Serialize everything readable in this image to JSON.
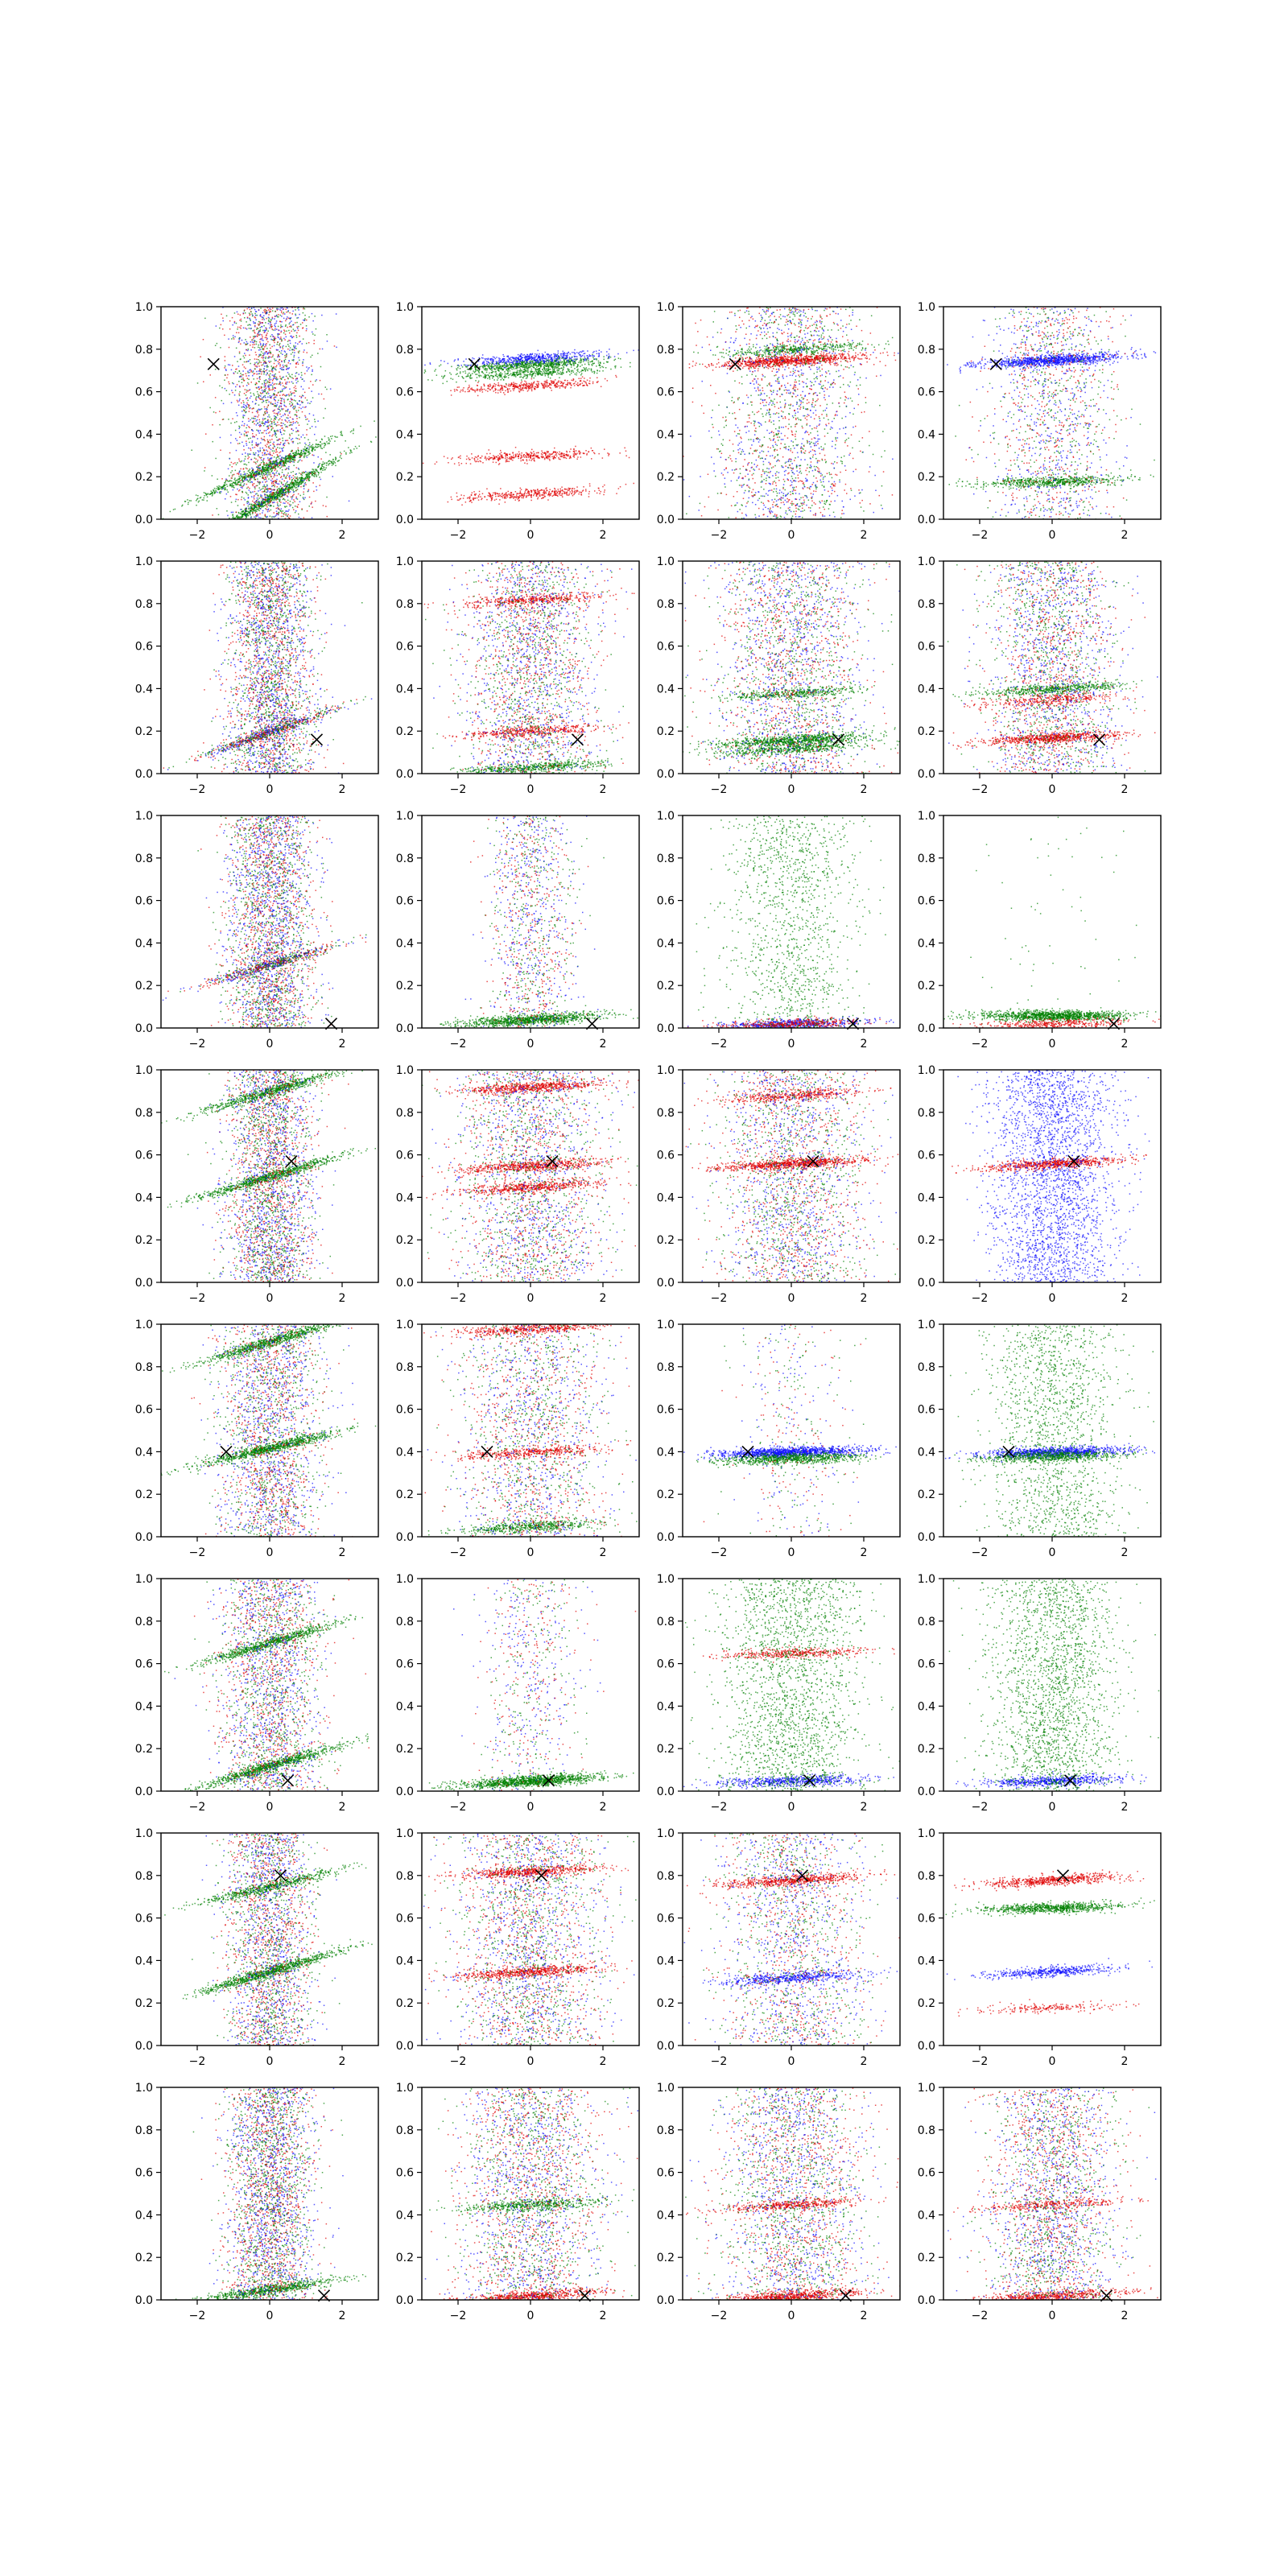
{
  "figure": {
    "rows": 8,
    "cols": 4,
    "colors": {
      "red": "#e00000",
      "green": "#008000",
      "blue": "#1010ff",
      "marker": "#000000"
    }
  },
  "chart_data": {
    "type": "scatter",
    "title": "",
    "xlabel": "",
    "ylabel": "",
    "grid": false,
    "legend": "none",
    "xlim": [
      -3,
      3
    ],
    "ylim": [
      0,
      1
    ],
    "x_ticks": [
      -2,
      0,
      2
    ],
    "y_ticks": [
      0.0,
      0.2,
      0.4,
      0.6,
      0.8,
      1.0
    ],
    "x_tick_labels": [
      "−2",
      "0",
      "2"
    ],
    "y_tick_labels": [
      "0.0",
      "0.2",
      "0.4",
      "0.6",
      "0.8",
      "1.0"
    ],
    "marker_symbol": "x",
    "rows": [
      {
        "marker": [
          -1.55,
          0.73
        ],
        "bands": [
          [
            {
              "y": 0.1,
              "slope": 0.2,
              "color": "green",
              "n": 900
            },
            {
              "y": 0.25,
              "slope": 0.15,
              "color": "green",
              "n": 700
            },
            {
              "y": 0.5,
              "slope": 0,
              "color": "mixed",
              "n": 2500,
              "spread": 0.6
            }
          ],
          [
            {
              "y": 0.73,
              "slope": 0.02,
              "color": "green",
              "n": 700
            },
            {
              "y": 0.69,
              "slope": 0.02,
              "color": "green",
              "n": 400
            },
            {
              "y": 0.76,
              "slope": 0.02,
              "color": "blue",
              "n": 500
            },
            {
              "y": 0.63,
              "slope": 0.02,
              "color": "red",
              "n": 400
            },
            {
              "y": 0.3,
              "slope": 0.02,
              "color": "red",
              "n": 400
            },
            {
              "y": 0.12,
              "slope": 0.02,
              "color": "red",
              "n": 400
            }
          ],
          [
            {
              "y": 0.75,
              "slope": 0.02,
              "color": "red",
              "n": 900
            },
            {
              "y": 0.8,
              "slope": 0.02,
              "color": "green",
              "n": 400
            },
            {
              "y": 0.5,
              "slope": 0,
              "color": "mixed",
              "n": 2000,
              "spread": 1
            }
          ],
          [
            {
              "y": 0.75,
              "slope": 0.02,
              "color": "blue",
              "n": 1000
            },
            {
              "y": 0.18,
              "slope": 0.01,
              "color": "green",
              "n": 600
            },
            {
              "y": 0.5,
              "slope": 0,
              "color": "mixed",
              "n": 1500,
              "spread": 0.9
            }
          ]
        ]
      },
      {
        "marker": [
          1.3,
          0.16
        ],
        "bands": [
          [
            {
              "y": 0.2,
              "slope": 0.12,
              "color": "mixed",
              "n": 700
            },
            {
              "y": 0.5,
              "slope": 0,
              "color": "mixed",
              "n": 3000,
              "spread": 0.6
            }
          ],
          [
            {
              "y": 0.82,
              "slope": 0.02,
              "color": "red",
              "n": 400
            },
            {
              "y": 0.2,
              "slope": 0.02,
              "color": "red",
              "n": 400
            },
            {
              "y": 0.03,
              "slope": 0.02,
              "color": "green",
              "n": 500
            },
            {
              "y": 0.5,
              "slope": 0,
              "color": "mixed",
              "n": 2500,
              "spread": 0.9
            }
          ],
          [
            {
              "y": 0.16,
              "slope": 0.02,
              "color": "green",
              "n": 800
            },
            {
              "y": 0.12,
              "slope": 0.02,
              "color": "green",
              "n": 500
            },
            {
              "y": 0.38,
              "slope": 0.02,
              "color": "green",
              "n": 400
            },
            {
              "y": 0.5,
              "slope": 0,
              "color": "mixed",
              "n": 2500,
              "spread": 1
            }
          ],
          [
            {
              "y": 0.17,
              "slope": 0.02,
              "color": "red",
              "n": 700
            },
            {
              "y": 0.35,
              "slope": 0.02,
              "color": "red",
              "n": 300
            },
            {
              "y": 0.4,
              "slope": 0.02,
              "color": "green",
              "n": 500
            },
            {
              "y": 0.5,
              "slope": 0,
              "color": "mixed",
              "n": 2500,
              "spread": 0.9
            }
          ]
        ]
      },
      {
        "marker": [
          1.7,
          0.02
        ],
        "bands": [
          [
            {
              "y": 0.3,
              "slope": 0.1,
              "color": "mixed",
              "n": 600
            },
            {
              "y": 0.5,
              "slope": 0,
              "color": "mixed",
              "n": 3000,
              "spread": 0.6
            }
          ],
          [
            {
              "y": 0.04,
              "slope": 0.02,
              "color": "green",
              "n": 1000
            },
            {
              "y": 0.5,
              "slope": 0,
              "color": "mixed",
              "n": 1200,
              "spread": 0.6
            }
          ],
          [
            {
              "y": 0.02,
              "slope": 0.01,
              "color": "blue",
              "n": 600
            },
            {
              "y": 0.02,
              "slope": 0.01,
              "color": "red",
              "n": 400
            },
            {
              "y": 0.5,
              "slope": 0,
              "color": "green",
              "n": 1200,
              "spread": 0.9
            }
          ],
          [
            {
              "y": 0.06,
              "slope": 0,
              "color": "green",
              "n": 1200
            },
            {
              "y": 0.02,
              "slope": 0.01,
              "color": "red",
              "n": 400
            },
            {
              "y": 0.5,
              "slope": 0,
              "color": "green",
              "n": 60,
              "spread": 1
            }
          ]
        ]
      },
      {
        "marker": [
          0.6,
          0.57
        ],
        "bands": [
          [
            {
              "y": 0.5,
              "slope": 0.1,
              "color": "green",
              "n": 800
            },
            {
              "y": 0.9,
              "slope": 0.1,
              "color": "green",
              "n": 700
            },
            {
              "y": 0.5,
              "slope": 0,
              "color": "mixed",
              "n": 3000,
              "spread": 0.6
            }
          ],
          [
            {
              "y": 0.92,
              "slope": 0.02,
              "color": "red",
              "n": 600
            },
            {
              "y": 0.55,
              "slope": 0.02,
              "color": "red",
              "n": 600
            },
            {
              "y": 0.45,
              "slope": 0.02,
              "color": "red",
              "n": 500
            },
            {
              "y": 0.5,
              "slope": 0,
              "color": "mixed",
              "n": 2500,
              "spread": 1
            }
          ],
          [
            {
              "y": 0.56,
              "slope": 0.02,
              "color": "red",
              "n": 800
            },
            {
              "y": 0.88,
              "slope": 0.02,
              "color": "red",
              "n": 400
            },
            {
              "y": 0.5,
              "slope": 0,
              "color": "mixed",
              "n": 2500,
              "spread": 1
            }
          ],
          [
            {
              "y": 0.56,
              "slope": 0.02,
              "color": "red",
              "n": 700
            },
            {
              "y": 0.5,
              "slope": 0,
              "color": "blue",
              "n": 2500,
              "spread": 0.9
            }
          ]
        ]
      },
      {
        "marker": [
          -1.2,
          0.4
        ],
        "bands": [
          [
            {
              "y": 0.42,
              "slope": 0.08,
              "color": "green",
              "n": 900
            },
            {
              "y": 0.92,
              "slope": 0.1,
              "color": "green",
              "n": 800
            },
            {
              "y": 0.5,
              "slope": 0,
              "color": "mixed",
              "n": 2500,
              "spread": 0.7
            }
          ],
          [
            {
              "y": 0.98,
              "slope": 0.02,
              "color": "red",
              "n": 500
            },
            {
              "y": 0.4,
              "slope": 0.02,
              "color": "red",
              "n": 400
            },
            {
              "y": 0.05,
              "slope": 0.02,
              "color": "green",
              "n": 500
            },
            {
              "y": 0.5,
              "slope": 0,
              "color": "mixed",
              "n": 2000,
              "spread": 1
            }
          ],
          [
            {
              "y": 0.4,
              "slope": 0.01,
              "color": "blue",
              "n": 1200
            },
            {
              "y": 0.37,
              "slope": 0.01,
              "color": "green",
              "n": 800
            },
            {
              "y": 0.5,
              "slope": 0,
              "color": "mixed",
              "n": 400,
              "spread": 0.8
            }
          ],
          [
            {
              "y": 0.4,
              "slope": 0.01,
              "color": "blue",
              "n": 1000
            },
            {
              "y": 0.38,
              "slope": 0.01,
              "color": "green",
              "n": 600
            },
            {
              "y": 0.5,
              "slope": 0,
              "color": "green",
              "n": 1500,
              "spread": 0.9
            }
          ]
        ]
      },
      {
        "marker": [
          0.5,
          0.05
        ],
        "bands": [
          [
            {
              "y": 0.12,
              "slope": 0.1,
              "color": "green",
              "n": 900
            },
            {
              "y": 0.7,
              "slope": 0.1,
              "color": "green",
              "n": 700
            },
            {
              "y": 0.5,
              "slope": 0,
              "color": "mixed",
              "n": 2500,
              "spread": 0.7
            }
          ],
          [
            {
              "y": 0.05,
              "slope": 0.02,
              "color": "green",
              "n": 1200
            },
            {
              "y": 0.5,
              "slope": 0,
              "color": "mixed",
              "n": 700,
              "spread": 0.7
            }
          ],
          [
            {
              "y": 0.05,
              "slope": 0.01,
              "color": "blue",
              "n": 600
            },
            {
              "y": 0.65,
              "slope": 0.01,
              "color": "red",
              "n": 400
            },
            {
              "y": 0.5,
              "slope": 0,
              "color": "green",
              "n": 2000,
              "spread": 1
            }
          ],
          [
            {
              "y": 0.05,
              "slope": 0.01,
              "color": "blue",
              "n": 600
            },
            {
              "y": 0.5,
              "slope": 0,
              "color": "green",
              "n": 2000,
              "spread": 0.9
            }
          ]
        ]
      },
      {
        "marker": [
          0.3,
          0.8
        ],
        "bands": [
          [
            {
              "y": 0.35,
              "slope": 0.1,
              "color": "green",
              "n": 900
            },
            {
              "y": 0.75,
              "slope": 0.08,
              "color": "green",
              "n": 600
            },
            {
              "y": 0.5,
              "slope": 0,
              "color": "mixed",
              "n": 2500,
              "spread": 0.6
            }
          ],
          [
            {
              "y": 0.82,
              "slope": 0.02,
              "color": "red",
              "n": 600
            },
            {
              "y": 0.35,
              "slope": 0.02,
              "color": "red",
              "n": 600
            },
            {
              "y": 0.5,
              "slope": 0,
              "color": "mixed",
              "n": 2500,
              "spread": 1
            }
          ],
          [
            {
              "y": 0.78,
              "slope": 0.02,
              "color": "red",
              "n": 600
            },
            {
              "y": 0.32,
              "slope": 0.02,
              "color": "blue",
              "n": 500
            },
            {
              "y": 0.5,
              "slope": 0,
              "color": "mixed",
              "n": 2000,
              "spread": 1
            }
          ],
          [
            {
              "y": 0.78,
              "slope": 0.02,
              "color": "red",
              "n": 600
            },
            {
              "y": 0.35,
              "slope": 0.02,
              "color": "blue",
              "n": 500
            },
            {
              "y": 0.18,
              "slope": 0.01,
              "color": "red",
              "n": 200
            },
            {
              "y": 0.65,
              "slope": 0.01,
              "color": "green",
              "n": 800
            }
          ]
        ]
      },
      {
        "marker": [
          1.5,
          0.02
        ],
        "bands": [
          [
            {
              "y": 0.05,
              "slope": 0.05,
              "color": "green",
              "n": 700
            },
            {
              "y": 0.5,
              "slope": 0,
              "color": "mixed",
              "n": 3000,
              "spread": 0.6
            }
          ],
          [
            {
              "y": 0.02,
              "slope": 0.02,
              "color": "red",
              "n": 600
            },
            {
              "y": 0.45,
              "slope": 0.02,
              "color": "green",
              "n": 500
            },
            {
              "y": 0.5,
              "slope": 0,
              "color": "mixed",
              "n": 2500,
              "spread": 1
            }
          ],
          [
            {
              "y": 0.02,
              "slope": 0.02,
              "color": "red",
              "n": 700
            },
            {
              "y": 0.45,
              "slope": 0.02,
              "color": "red",
              "n": 400
            },
            {
              "y": 0.5,
              "slope": 0,
              "color": "mixed",
              "n": 2500,
              "spread": 1
            }
          ],
          [
            {
              "y": 0.02,
              "slope": 0.02,
              "color": "red",
              "n": 600
            },
            {
              "y": 0.45,
              "slope": 0.02,
              "color": "red",
              "n": 300
            },
            {
              "y": 0.5,
              "slope": 0,
              "color": "mixed",
              "n": 2500,
              "spread": 0.9
            }
          ]
        ]
      }
    ]
  }
}
